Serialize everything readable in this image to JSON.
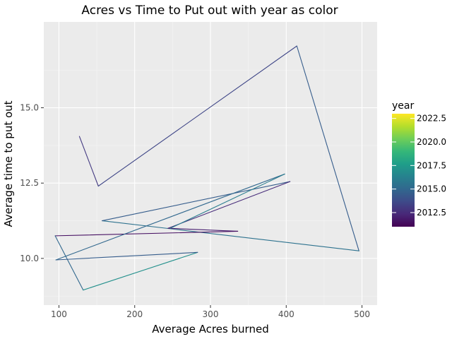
{
  "chart_data": {
    "type": "line",
    "title": "Acres vs Time to Put out with year as color",
    "xlabel": "Average Acres burned",
    "ylabel": "Average time to put out",
    "xlim": [
      80,
      520
    ],
    "ylim": [
      8.45,
      17.85
    ],
    "x_ticks": [
      100,
      200,
      300,
      400,
      500
    ],
    "x_tick_labels": [
      "100",
      "200",
      "300",
      "400",
      "500"
    ],
    "y_ticks": [
      10.0,
      12.5,
      15.0
    ],
    "y_tick_labels": [
      "10.0",
      "12.5",
      "15.0"
    ],
    "grid": true,
    "legend": {
      "title": "year",
      "position": "right",
      "type": "colorbar",
      "range": [
        2011,
        2023
      ],
      "ticks": [
        2012.5,
        2015.0,
        2017.5,
        2020.0,
        2022.5
      ],
      "tick_labels": [
        "2012.5",
        "2015.0",
        "2017.5",
        "2020.0",
        "2022.5"
      ],
      "colormap": [
        "#440154",
        "#482878",
        "#3e4a89",
        "#31688e",
        "#26828e",
        "#1f9e89",
        "#35b779",
        "#6ece58",
        "#b5de2b",
        "#fde725"
      ]
    },
    "points": [
      {
        "x": 127,
        "y": 14.05,
        "year": 2013
      },
      {
        "x": 152,
        "y": 12.4,
        "year": 2013
      },
      {
        "x": 414,
        "y": 17.05,
        "year": 2014
      },
      {
        "x": 496,
        "y": 10.25,
        "year": 2015
      },
      {
        "x": 157,
        "y": 11.25,
        "year": 2016
      },
      {
        "x": 405,
        "y": 12.55,
        "year": 2013
      },
      {
        "x": 244,
        "y": 11.0,
        "year": 2012
      },
      {
        "x": 336,
        "y": 10.9,
        "year": 2012
      },
      {
        "x": 95,
        "y": 10.75,
        "year": 2011
      },
      {
        "x": 132,
        "y": 8.95,
        "year": 2019
      },
      {
        "x": 283,
        "y": 10.2,
        "year": 2015
      },
      {
        "x": 96,
        "y": 9.95,
        "year": 2014
      },
      {
        "x": 398,
        "y": 12.8,
        "year": 2016
      },
      {
        "x": 247,
        "y": 11.0,
        "year": 2016
      }
    ],
    "segment_order": [
      0,
      1,
      2,
      3,
      4,
      5,
      6,
      7,
      8,
      9,
      10,
      11,
      12,
      13
    ]
  }
}
